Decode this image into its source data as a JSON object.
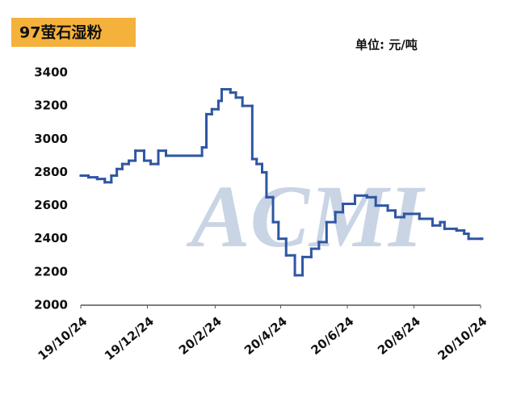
{
  "chart_data": {
    "type": "step-line",
    "title": "97萤石湿粉",
    "unit": "单位: 元/吨",
    "watermark": "ACMI",
    "x": [
      "2019-10-24",
      "2019-10-31",
      "2019-11-08",
      "2019-11-15",
      "2019-11-21",
      "2019-11-26",
      "2019-12-01",
      "2019-12-07",
      "2019-12-13",
      "2019-12-21",
      "2019-12-27",
      "2020-01-03",
      "2020-01-10",
      "2020-02-12",
      "2020-02-16",
      "2020-02-21",
      "2020-02-27",
      "2020-03-01",
      "2020-03-09",
      "2020-03-14",
      "2020-03-20",
      "2020-03-29",
      "2020-04-02",
      "2020-04-07",
      "2020-04-11",
      "2020-04-17",
      "2020-04-22",
      "2020-04-29",
      "2020-05-07",
      "2020-05-14",
      "2020-05-22",
      "2020-05-29",
      "2020-06-05",
      "2020-06-13",
      "2020-06-20",
      "2020-07-01",
      "2020-07-12",
      "2020-07-20",
      "2020-07-31",
      "2020-08-07",
      "2020-08-15",
      "2020-08-29",
      "2020-09-10",
      "2020-09-17",
      "2020-09-21",
      "2020-10-02",
      "2020-10-09",
      "2020-10-13",
      "2020-10-24"
    ],
    "series": [
      {
        "color": "#2f56a3",
        "values": [
          2780,
          2770,
          2760,
          2740,
          2780,
          2820,
          2850,
          2870,
          2930,
          2870,
          2850,
          2930,
          2900,
          2950,
          3150,
          3180,
          3230,
          3300,
          3280,
          3250,
          3200,
          2880,
          2850,
          2800,
          2650,
          2500,
          2400,
          2300,
          2180,
          2290,
          2340,
          2380,
          2500,
          2560,
          2610,
          2660,
          2650,
          2600,
          2570,
          2530,
          2550,
          2520,
          2480,
          2500,
          2460,
          2450,
          2430,
          2400,
          2400
        ]
      }
    ],
    "xlim": [
      "2019-10-24",
      "2020-10-24"
    ],
    "xticks": [
      {
        "value": "2019-10-24",
        "label": "19/10/24"
      },
      {
        "value": "2019-12-24",
        "label": "19/12/24"
      },
      {
        "value": "2020-02-24",
        "label": "20/2/24"
      },
      {
        "value": "2020-04-24",
        "label": "20/4/24"
      },
      {
        "value": "2020-06-24",
        "label": "20/6/24"
      },
      {
        "value": "2020-08-24",
        "label": "20/8/24"
      },
      {
        "value": "2020-10-24",
        "label": "20/10/24"
      }
    ],
    "ylim": [
      2000,
      3400
    ],
    "yticks": [
      2000,
      2200,
      2400,
      2600,
      2800,
      3000,
      3200,
      3400
    ],
    "grid": false
  }
}
